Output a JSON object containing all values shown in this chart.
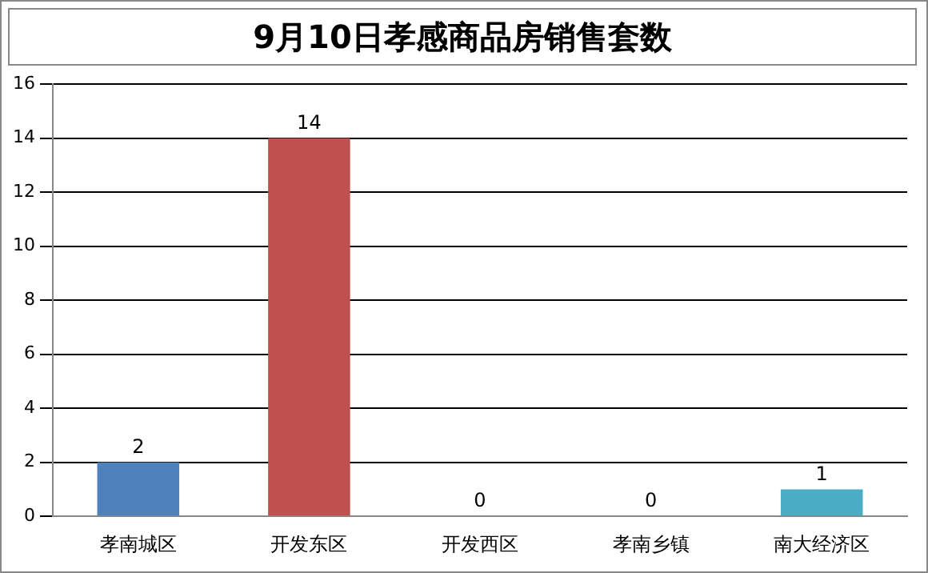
{
  "chart_data": {
    "type": "bar",
    "title": "9月10日孝感商品房销售套数",
    "categories": [
      "孝南城区",
      "开发东区",
      "开发西区",
      "孝南乡镇",
      "南大经济区"
    ],
    "values": [
      2,
      14,
      0,
      0,
      1
    ],
    "colors": [
      "#4f81bd",
      "#c0504d",
      "#9bbb59",
      "#8064a2",
      "#4bacc6"
    ],
    "ylim": [
      0,
      16
    ],
    "yticks": [
      0,
      2,
      4,
      6,
      8,
      10,
      12,
      14,
      16
    ],
    "grid": "y",
    "data_labels": true
  }
}
